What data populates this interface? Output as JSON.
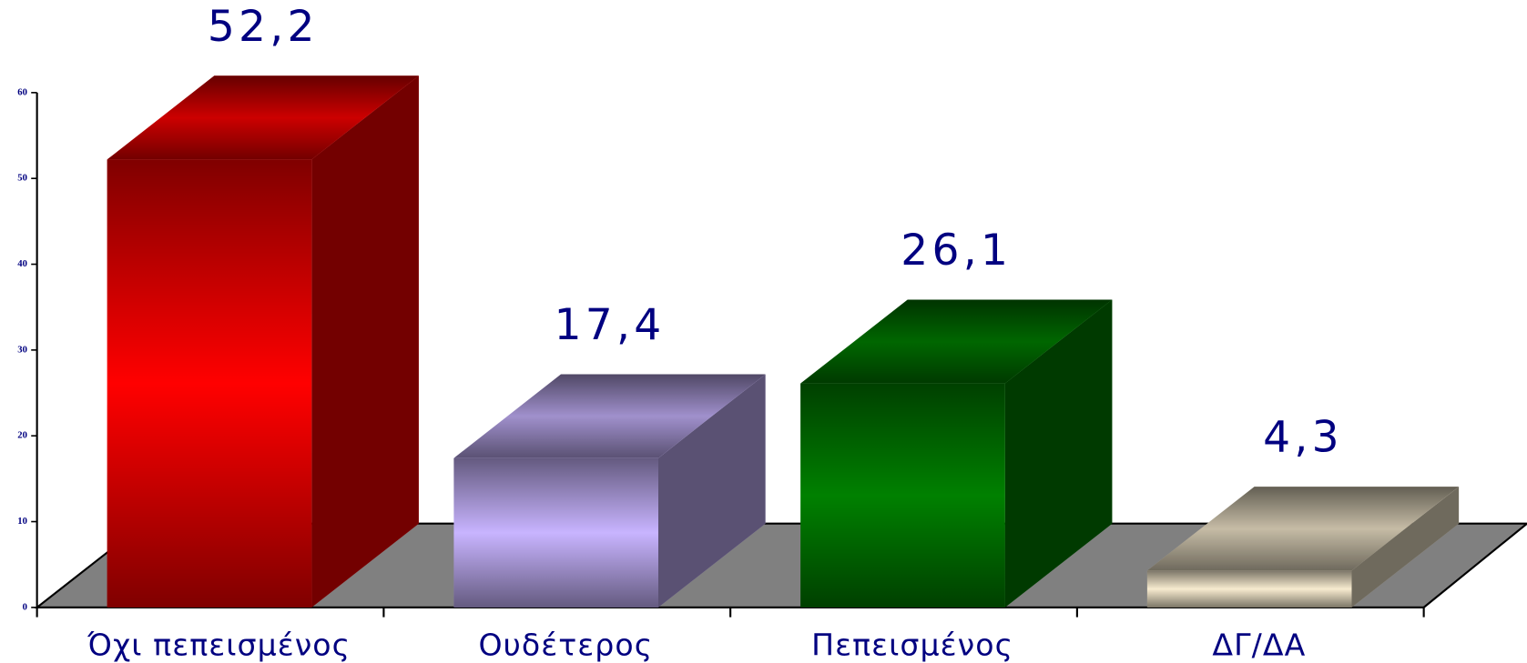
{
  "chart_data": {
    "type": "bar3d",
    "categories": [
      "Όχι πεπεισμένος",
      "Ουδέτερος",
      "Πεπεισμένος",
      "ΔΓ/ΔΑ"
    ],
    "values": [
      52.2,
      17.4,
      26.1,
      4.3
    ],
    "value_labels": [
      "52,2",
      "17,4",
      "26,1",
      "4,3"
    ],
    "colors": [
      "#ff0000",
      "#c8b4ff",
      "#008000",
      "#f7ebcf"
    ],
    "ylim": [
      0,
      60
    ],
    "yticks": [
      0,
      10,
      20,
      30,
      40,
      50,
      60
    ]
  }
}
